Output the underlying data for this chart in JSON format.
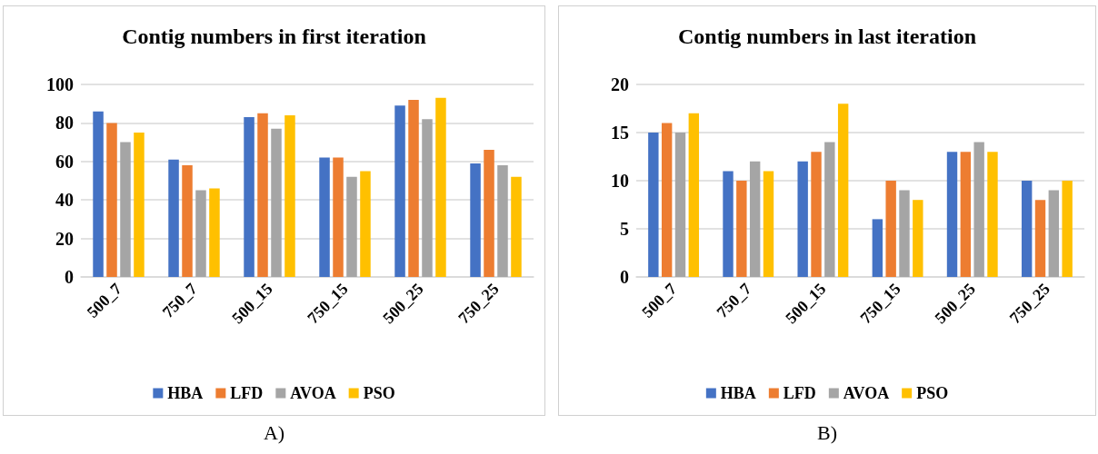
{
  "chart_data": [
    {
      "type": "bar",
      "title": "Contig numbers in first iteration",
      "categories": [
        "500_7",
        "750_7",
        "500_15",
        "750_15",
        "500_25",
        "750_25"
      ],
      "series": [
        {
          "name": "HBA",
          "color": "#4472c4",
          "values": [
            86,
            61,
            83,
            62,
            89,
            59
          ]
        },
        {
          "name": "LFD",
          "color": "#ed7d31",
          "values": [
            80,
            58,
            85,
            62,
            92,
            66
          ]
        },
        {
          "name": "AVOA",
          "color": "#a5a5a5",
          "values": [
            70,
            45,
            77,
            52,
            82,
            58
          ]
        },
        {
          "name": "PSO",
          "color": "#ffc000",
          "values": [
            75,
            46,
            84,
            55,
            93,
            52
          ]
        }
      ],
      "ylim": [
        0,
        100
      ],
      "yticks": [
        0,
        20,
        40,
        60,
        80,
        100
      ],
      "grid": "y",
      "legend": "bottom",
      "annotations": [
        "A)"
      ]
    },
    {
      "type": "bar",
      "title": "Contig numbers in last iteration",
      "categories": [
        "500_7",
        "750_7",
        "500_15",
        "750_15",
        "500_25",
        "750_25"
      ],
      "series": [
        {
          "name": "HBA",
          "color": "#4472c4",
          "values": [
            15,
            11,
            12,
            6,
            13,
            10
          ]
        },
        {
          "name": "LFD",
          "color": "#ed7d31",
          "values": [
            16,
            10,
            13,
            10,
            13,
            8
          ]
        },
        {
          "name": "AVOA",
          "color": "#a5a5a5",
          "values": [
            15,
            12,
            14,
            9,
            14,
            9
          ]
        },
        {
          "name": "PSO",
          "color": "#ffc000",
          "values": [
            17,
            11,
            18,
            8,
            13,
            10
          ]
        }
      ],
      "ylim": [
        0,
        20
      ],
      "yticks": [
        0,
        5,
        10,
        15,
        20
      ],
      "grid": "y",
      "legend": "bottom",
      "annotations": [
        "B)"
      ]
    }
  ]
}
